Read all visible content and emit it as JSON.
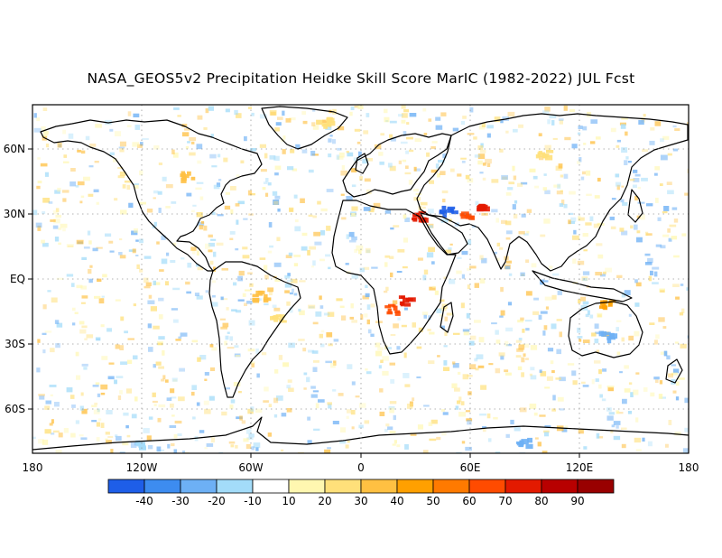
{
  "title": "NASA_GEOS5v2 Precipitation Heidke Skill Score MarIC (1982-2022) JUL Fcst",
  "map": {
    "lon_labels": [
      "180",
      "120W",
      "60W",
      "0",
      "60E",
      "120E",
      "180"
    ],
    "lat_labels": [
      "60N",
      "30N",
      "EQ",
      "30S",
      "60S"
    ],
    "grid_lines": "dotted",
    "land_fill": "#ffffff",
    "coastline_color": "#000000"
  },
  "colorbar": {
    "tick_labels": [
      "-40",
      "-30",
      "-20",
      "-10",
      "10",
      "20",
      "30",
      "40",
      "50",
      "60",
      "70",
      "80",
      "90"
    ],
    "colors": [
      "#1e5ee8",
      "#3d8cf0",
      "#6db0f5",
      "#a3dcf9",
      "#ffffff",
      "#fff7b0",
      "#ffe07a",
      "#ffc042",
      "#ffa000",
      "#ff7a00",
      "#ff4b00",
      "#e31a00",
      "#b80000",
      "#990000"
    ]
  },
  "hotspots": [
    {
      "lon": 31,
      "lat": 27,
      "level": 70
    },
    {
      "lon": 48,
      "lat": 29,
      "level": -40
    },
    {
      "lon": 58,
      "lat": 27,
      "level": 60
    },
    {
      "lon": 68,
      "lat": 30,
      "level": 70
    },
    {
      "lon": 25,
      "lat": -12,
      "level": 70
    },
    {
      "lon": 17,
      "lat": -16,
      "level": 60
    },
    {
      "lon": 135,
      "lat": -14,
      "level": 40
    },
    {
      "lon": 135,
      "lat": -28,
      "level": -20
    },
    {
      "lon": -95,
      "lat": 45,
      "level": 30
    },
    {
      "lon": -55,
      "lat": -10,
      "level": 30
    },
    {
      "lon": -45,
      "lat": -20,
      "level": 20
    },
    {
      "lon": 100,
      "lat": 55,
      "level": 20
    },
    {
      "lon": -20,
      "lat": 70,
      "level": 20
    },
    {
      "lon": 90,
      "lat": -77,
      "level": -20
    },
    {
      "lon": -120,
      "lat": -78,
      "level": -10
    }
  ]
}
